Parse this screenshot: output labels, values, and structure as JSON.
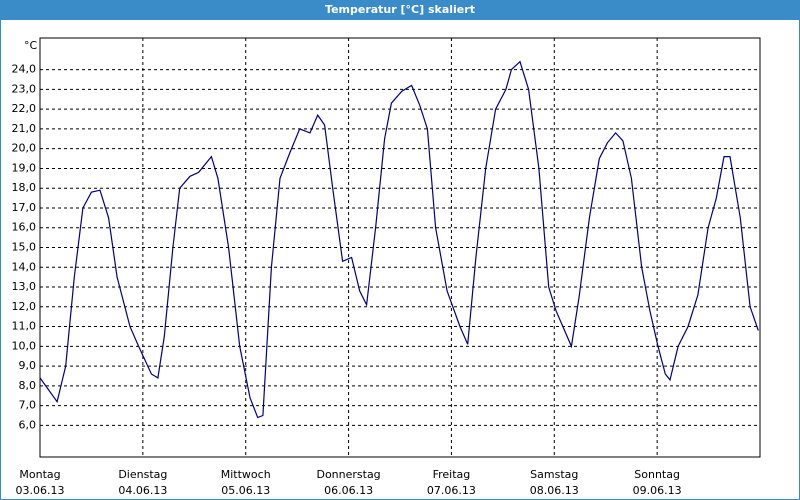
{
  "chart_data": {
    "type": "line",
    "title": "Temperatur [°C] skaliert",
    "y_unit": "°C",
    "color": "#000080",
    "grid": true,
    "xlim": [
      0,
      168
    ],
    "ylim": [
      4.4,
      25.6
    ],
    "xticks": [
      {
        "value": 0,
        "label": "Montag"
      },
      {
        "value": 24,
        "label": "Dienstag"
      },
      {
        "value": 48,
        "label": "Mittwoch"
      },
      {
        "value": 72,
        "label": "Donnerstag"
      },
      {
        "value": 96,
        "label": "Freitag"
      },
      {
        "value": 120,
        "label": "Samstag"
      },
      {
        "value": 144,
        "label": "Sonntag"
      }
    ],
    "xtick_dates": [
      "03.06.13",
      "04.06.13",
      "05.06.13",
      "06.06.13",
      "07.06.13",
      "08.06.13",
      "09.06.13"
    ],
    "yticks": [
      {
        "value": 6,
        "label": "6,0"
      },
      {
        "value": 7,
        "label": "7,0"
      },
      {
        "value": 8,
        "label": "8,0"
      },
      {
        "value": 9,
        "label": "9,0"
      },
      {
        "value": 10,
        "label": "10,0"
      },
      {
        "value": 11,
        "label": "11,0"
      },
      {
        "value": 12,
        "label": "12,0"
      },
      {
        "value": 13,
        "label": "13,0"
      },
      {
        "value": 14,
        "label": "14,0"
      },
      {
        "value": 15,
        "label": "15,0"
      },
      {
        "value": 16,
        "label": "16,0"
      },
      {
        "value": 17,
        "label": "17,0"
      },
      {
        "value": 18,
        "label": "18,0"
      },
      {
        "value": 19,
        "label": "19,0"
      },
      {
        "value": 20,
        "label": "20,0"
      },
      {
        "value": 21,
        "label": "21,0"
      },
      {
        "value": 22,
        "label": "22,0"
      },
      {
        "value": 23,
        "label": "23,0"
      },
      {
        "value": 24,
        "label": "24,0"
      }
    ],
    "x": [
      0,
      4,
      6,
      8,
      10,
      12,
      14,
      16,
      18,
      21,
      23,
      26,
      27.5,
      29,
      31,
      32.6,
      35,
      37,
      40,
      41.5,
      44,
      46.6,
      49,
      50.8,
      52,
      54,
      56,
      58.3,
      60.6,
      63,
      64.8,
      66.4,
      68.3,
      70.6,
      72.7,
      74.6,
      76.2,
      78.3,
      80.4,
      82,
      84.4,
      86.7,
      88.6,
      90.4,
      92.3,
      95,
      98,
      99.8,
      101.7,
      104,
      106.3,
      108.7,
      110,
      112,
      114,
      116.4,
      118.7,
      120.4,
      122,
      124,
      125.8,
      128.2,
      130.5,
      132.4,
      134.3,
      136,
      138,
      140.4,
      142.3,
      144.2,
      145.9,
      147,
      148.9,
      151.2,
      153.5,
      155.9,
      157.8,
      159.6,
      161,
      163.4,
      165.7,
      167.6
    ],
    "values": [
      8.4,
      7.2,
      9.0,
      13.5,
      17.0,
      17.8,
      17.9,
      16.5,
      13.5,
      11.0,
      10.0,
      8.6,
      8.4,
      10.5,
      15.0,
      18.0,
      18.6,
      18.8,
      19.6,
      18.5,
      15.0,
      10.0,
      7.4,
      6.4,
      6.5,
      14.0,
      18.5,
      19.8,
      21.0,
      20.8,
      21.7,
      21.2,
      18.0,
      14.3,
      14.5,
      12.8,
      12.1,
      16.0,
      20.5,
      22.3,
      22.9,
      23.2,
      22.2,
      21.0,
      16.0,
      12.8,
      11.0,
      10.1,
      14.5,
      19.0,
      22.0,
      23.0,
      24.0,
      24.4,
      23.0,
      19.0,
      13.0,
      11.8,
      11.0,
      10.0,
      12.5,
      16.5,
      19.5,
      20.3,
      20.8,
      20.4,
      18.5,
      14.0,
      11.8,
      10.0,
      8.6,
      8.3,
      10.0,
      11.0,
      12.6,
      16.0,
      17.5,
      19.6,
      19.6,
      16.5,
      12.0,
      10.8
    ]
  }
}
